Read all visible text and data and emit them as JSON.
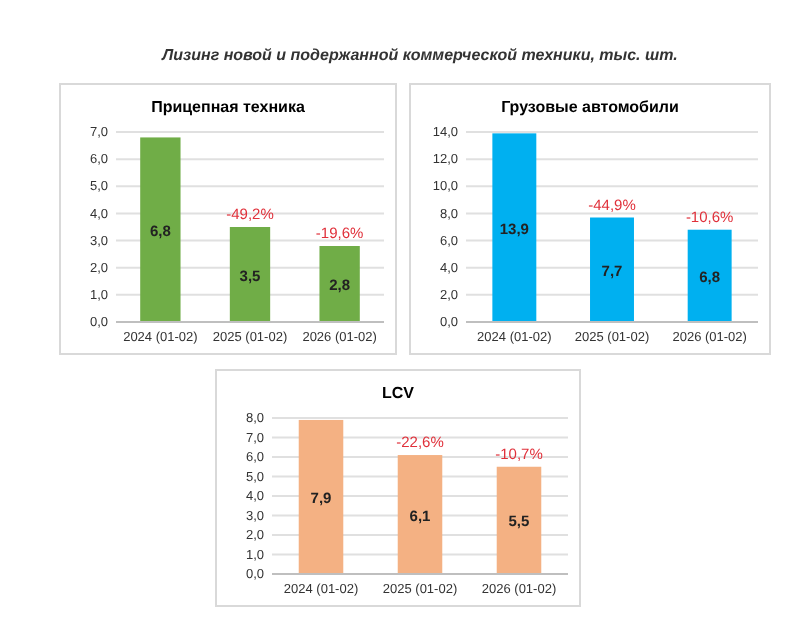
{
  "chart_data": [
    {
      "type": "bar",
      "title": "Прицепная техника",
      "annotations": [
        "Лизинг новой и подержанной коммерческой техники, тыс. шт.",
        {
          "text": "-49,2%",
          "x": "2025 (01-02)",
          "y": 3.5
        },
        {
          "text": "-19,6%",
          "x": "2026 (01-02)",
          "y": 2.8
        }
      ],
      "categories": [
        "2024 (01-02)",
        "2025 (01-02)",
        "2026 (01-02)"
      ],
      "values": [
        6.8,
        3.5,
        2.8
      ],
      "value_labels": [
        "6,8",
        "3,5",
        "2,8"
      ],
      "color": "#70ad47",
      "ylim": [
        0,
        7
      ],
      "yticks": [
        {
          "value": 0,
          "label": "0,0"
        },
        {
          "value": 1,
          "label": "1,0"
        },
        {
          "value": 2,
          "label": "2,0"
        },
        {
          "value": 3,
          "label": "3,0"
        },
        {
          "value": 4,
          "label": "4,0"
        },
        {
          "value": 5,
          "label": "5,0"
        },
        {
          "value": 6,
          "label": "6,0"
        },
        {
          "value": 7,
          "label": "7,0"
        }
      ],
      "grid": "y"
    },
    {
      "type": "bar",
      "title": "Грузовые автомобили",
      "annotations": [
        {
          "text": "-44,9%",
          "x": "2025 (01-02)",
          "y": 7.7
        },
        {
          "text": "-10,6%",
          "x": "2026 (01-02)",
          "y": 6.8
        }
      ],
      "categories": [
        "2024 (01-02)",
        "2025 (01-02)",
        "2026 (01-02)"
      ],
      "values": [
        13.9,
        7.7,
        6.8
      ],
      "value_labels": [
        "13,9",
        "7,7",
        "6,8"
      ],
      "color": "#00b0f0",
      "ylim": [
        0,
        14
      ],
      "yticks": [
        {
          "value": 0,
          "label": "0,0"
        },
        {
          "value": 2,
          "label": "2,0"
        },
        {
          "value": 4,
          "label": "4,0"
        },
        {
          "value": 6,
          "label": "6,0"
        },
        {
          "value": 8,
          "label": "8,0"
        },
        {
          "value": 10,
          "label": "10,0"
        },
        {
          "value": 12,
          "label": "12,0"
        },
        {
          "value": 14,
          "label": "14,0"
        }
      ],
      "grid": "y"
    },
    {
      "type": "bar",
      "title": "LCV",
      "annotations": [
        {
          "text": "-22,6%",
          "x": "2025 (01-02)",
          "y": 6.1
        },
        {
          "text": "-10,7%",
          "x": "2026 (01-02)",
          "y": 5.5
        }
      ],
      "categories": [
        "2024 (01-02)",
        "2025 (01-02)",
        "2026 (01-02)"
      ],
      "values": [
        7.9,
        6.1,
        5.5
      ],
      "value_labels": [
        "7,9",
        "6,1",
        "5,5"
      ],
      "color": "#f4b183",
      "ylim": [
        0,
        8
      ],
      "yticks": [
        {
          "value": 0,
          "label": "0,0"
        },
        {
          "value": 1,
          "label": "1,0"
        },
        {
          "value": 2,
          "label": "2,0"
        },
        {
          "value": 3,
          "label": "3,0"
        },
        {
          "value": 4,
          "label": "4,0"
        },
        {
          "value": 5,
          "label": "5,0"
        },
        {
          "value": 6,
          "label": "6,0"
        },
        {
          "value": 7,
          "label": "7,0"
        },
        {
          "value": 8,
          "label": "8,0"
        }
      ],
      "grid": "y"
    }
  ]
}
